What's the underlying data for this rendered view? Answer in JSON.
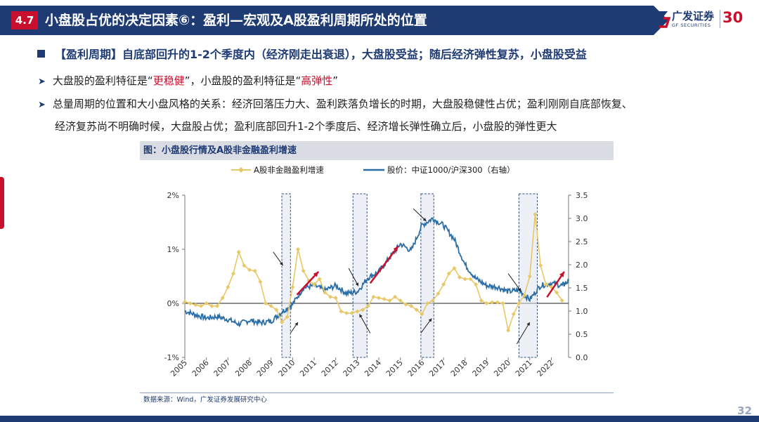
{
  "header": {
    "section": "4.7",
    "title": "小盘股占优的决定因素⑥：盈利—宏观及A股盈利周期所处的位置"
  },
  "logo": {
    "cn": "广发证券",
    "en": "GF SECURITIES",
    "anniversary": "30"
  },
  "content": {
    "main_bullet": "【盈利周期】自底部回升的1-2个季度内（经济刚走出衰退），大盘股受益；随后经济弹性复苏，小盘股受益",
    "sub1": {
      "pre": "大盘股的盈利特征是“",
      "red1": "更稳健",
      "mid": "”，小盘股的盈利特征是“",
      "red2": "高弹性",
      "post": "”"
    },
    "sub2_line1": "总量周期的位置和大小盘风格的关系：经济回落压力大、盈利跌落负增长的时期，大盘股稳健性占优；盈利刚刚自底部恢复、",
    "sub2_line2": "经济复苏尚不明确时候，大盘股占优；盈利底部回升1-2个季度后、经济增长弹性确立后，小盘股的弹性更大"
  },
  "chart_data": {
    "type": "line",
    "title": "图：小盘股行情及A股非金融盈利增速",
    "legend_position": "top",
    "x_ticks": [
      "2005",
      "2006",
      "2007",
      "2008",
      "2009",
      "2010",
      "2011",
      "2012",
      "2013",
      "2014",
      "2015",
      "2016",
      "2017",
      "2018",
      "2019",
      "2020",
      "2021",
      "2022"
    ],
    "xlim": [
      2005,
      2022.8
    ],
    "y_left": {
      "ticks": [
        "-1%",
        "0%",
        "1%",
        "2%"
      ],
      "lim": [
        -1,
        2
      ]
    },
    "y_right": {
      "ticks": [
        "0.0",
        "0.5",
        "1.0",
        "1.5",
        "2.0",
        "2.5",
        "3.0",
        "3.5"
      ],
      "lim": [
        0,
        3.5
      ]
    },
    "series": [
      {
        "name": "A股非金融盈利增速",
        "color": "#e8c866",
        "axis": "left",
        "marker": "diamond",
        "x": [
          2005.0,
          2005.25,
          2005.5,
          2005.75,
          2006.0,
          2006.25,
          2006.5,
          2006.75,
          2007.0,
          2007.25,
          2007.5,
          2007.75,
          2008.0,
          2008.25,
          2008.5,
          2008.75,
          2009.0,
          2009.25,
          2009.5,
          2009.75,
          2010.0,
          2010.25,
          2010.5,
          2010.75,
          2011.0,
          2011.25,
          2011.5,
          2011.75,
          2012.0,
          2012.25,
          2012.5,
          2012.75,
          2013.0,
          2013.25,
          2013.5,
          2013.75,
          2014.0,
          2014.25,
          2014.5,
          2014.75,
          2015.0,
          2015.25,
          2015.5,
          2015.75,
          2016.0,
          2016.25,
          2016.5,
          2016.75,
          2017.0,
          2017.25,
          2017.5,
          2017.75,
          2018.0,
          2018.25,
          2018.5,
          2018.75,
          2019.0,
          2019.25,
          2019.5,
          2019.75,
          2020.0,
          2020.25,
          2020.5,
          2020.75,
          2021.0,
          2021.25,
          2021.5,
          2021.75,
          2022.0,
          2022.25,
          2022.5
        ],
        "values": [
          0.03,
          0.0,
          -0.03,
          -0.05,
          0.0,
          -0.05,
          -0.05,
          0.1,
          0.3,
          0.55,
          0.95,
          0.7,
          0.62,
          0.6,
          0.4,
          0.0,
          -0.05,
          -0.12,
          -0.35,
          -0.25,
          0.3,
          1.0,
          0.6,
          0.42,
          0.35,
          0.45,
          0.2,
          0.12,
          0.1,
          -0.15,
          -0.18,
          -0.18,
          -0.15,
          -0.12,
          -0.05,
          0.12,
          0.1,
          0.08,
          0.05,
          0.12,
          0.05,
          -0.02,
          -0.05,
          -0.12,
          -0.2,
          0.0,
          0.05,
          0.18,
          0.35,
          0.55,
          0.65,
          0.48,
          0.45,
          0.45,
          0.35,
          0.05,
          0.0,
          0.02,
          0.02,
          0.0,
          -0.5,
          -0.2,
          0.0,
          0.15,
          0.5,
          1.65,
          0.7,
          0.35,
          0.3,
          0.2,
          0.05
        ]
      },
      {
        "name": "股价：中证1000/沪深300（右轴）",
        "color": "#2b6ea6",
        "axis": "right",
        "x": [
          2005.0,
          2005.5,
          2006.0,
          2006.5,
          2007.0,
          2007.5,
          2008.0,
          2008.5,
          2009.0,
          2009.5,
          2010.0,
          2010.5,
          2011.0,
          2011.5,
          2012.0,
          2012.5,
          2013.0,
          2013.5,
          2014.0,
          2014.5,
          2015.0,
          2015.5,
          2016.0,
          2016.5,
          2017.0,
          2017.5,
          2018.0,
          2018.5,
          2019.0,
          2019.5,
          2020.0,
          2020.5,
          2021.0,
          2021.5,
          2022.0,
          2022.5,
          2022.8
        ],
        "values": [
          1.0,
          0.92,
          0.85,
          0.88,
          0.82,
          0.72,
          0.8,
          0.75,
          0.78,
          0.98,
          1.15,
          1.5,
          1.55,
          1.45,
          1.55,
          1.38,
          1.42,
          1.72,
          1.85,
          2.15,
          2.45,
          2.3,
          2.85,
          3.0,
          2.85,
          2.55,
          2.0,
          1.7,
          1.55,
          1.52,
          1.42,
          1.45,
          1.25,
          1.55,
          1.6,
          1.55,
          1.65
        ]
      }
    ],
    "highlight_bands": [
      [
        2009.5,
        2009.9
      ],
      [
        2012.8,
        2013.45
      ],
      [
        2015.95,
        2016.55
      ],
      [
        2020.5,
        2021.35
      ]
    ],
    "annotation_arrows": [
      {
        "color": "#c8102e",
        "from": [
          2010.2,
          1.35
        ],
        "to": [
          2011.2,
          1.85
        ],
        "axis": "right"
      },
      {
        "color": "#c8102e",
        "from": [
          2013.6,
          1.6
        ],
        "to": [
          2014.9,
          2.4
        ],
        "axis": "right"
      },
      {
        "color": "#c8102e",
        "from": [
          2021.8,
          1.3
        ],
        "to": [
          2022.6,
          1.85
        ],
        "axis": "right"
      }
    ]
  },
  "source": "数据来源：Wind，广发证券发展研究中心",
  "page_number": "32"
}
